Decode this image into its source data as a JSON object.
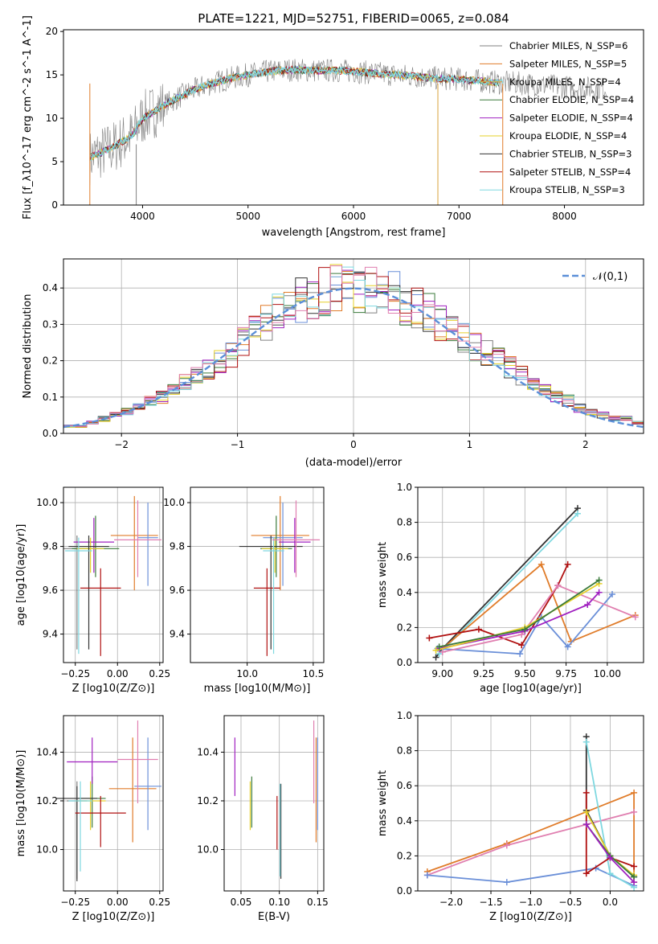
{
  "figure_title": "PLATE=1221, MJD=52751, FIBERID=0065, z=0.084",
  "colors": [
    "#808080",
    "#e07c2a",
    "#d9a13a",
    "#3a7a3a",
    "#a020c0",
    "#e6d02a",
    "#333333",
    "#b01010",
    "#7fd8e0"
  ],
  "chart_data": [
    {
      "id": "spectrum",
      "type": "line",
      "xlabel": "wavelength [Angstrom, rest frame]",
      "ylabel": "Flux [f_λ10^-17 erg cm^-2 s^-1 A^-1]",
      "xlim": [
        3250,
        8750
      ],
      "ylim": [
        0,
        20.2
      ],
      "xticks": [
        "4000",
        "5000",
        "6000",
        "7000",
        "8000"
      ],
      "yticks": [
        "0",
        "5",
        "10",
        "15",
        "20"
      ],
      "legend": {
        "placement": "right",
        "entries": [
          {
            "name": "Chabrier MILES, N_SSP=6",
            "color": "#808080"
          },
          {
            "name": "Salpeter MILES, N_SSP=5",
            "color": "#e07c2a"
          },
          {
            "name": "Kroupa MILES, N_SSP=4",
            "color": "#d9a13a"
          },
          {
            "name": "Chabrier ELODIE, N_SSP=4",
            "color": "#3a7a3a"
          },
          {
            "name": "Salpeter ELODIE, N_SSP=4",
            "color": "#a020c0"
          },
          {
            "name": "Kroupa ELODIE, N_SSP=4",
            "color": "#e6d02a"
          },
          {
            "name": "Chabrier STELIB, N_SSP=3",
            "color": "#333333"
          },
          {
            "name": "Salpeter STELIB, N_SSP=4",
            "color": "#b01010"
          },
          {
            "name": "Kroupa STELIB, N_SSP=3",
            "color": "#7fd8e0"
          }
        ]
      },
      "continuum": {
        "x": [
          3500,
          3700,
          3900,
          4000,
          4200,
          4400,
          4600,
          4800,
          5000,
          5200,
          5400,
          5600,
          5800,
          6000,
          6200,
          6400,
          6600,
          6800,
          7000,
          7200,
          7400,
          7600,
          7800,
          8000,
          8200,
          8400
        ],
        "y": [
          5.5,
          6.5,
          8.0,
          10.0,
          11.5,
          12.8,
          13.8,
          14.5,
          15.0,
          15.4,
          15.6,
          15.5,
          15.5,
          15.4,
          15.2,
          15.0,
          14.8,
          14.6,
          14.5,
          14.3,
          14.1,
          14.0,
          13.8,
          13.6,
          13.5,
          13.4
        ]
      }
    },
    {
      "id": "residual-hist",
      "type": "line",
      "xlabel": "(data-model)/error",
      "ylabel": "Normed distribution",
      "xlim": [
        -2.5,
        2.5
      ],
      "ylim": [
        0,
        0.48
      ],
      "xticks": [
        "−2",
        "−1",
        "0",
        "1",
        "2"
      ],
      "yticks": [
        "0.0",
        "0.1",
        "0.2",
        "0.3",
        "0.4"
      ],
      "legend_label": "𝒩(0,1)",
      "bin_edges": [
        -2.5,
        -2.4,
        -2.3,
        -2.2,
        -2.1,
        -2.0,
        -1.9,
        -1.8,
        -1.7,
        -1.6,
        -1.5,
        -1.4,
        -1.3,
        -1.2,
        -1.1,
        -1.0,
        -0.9,
        -0.8,
        -0.7,
        -0.6,
        -0.5,
        -0.4,
        -0.3,
        -0.2,
        -0.1,
        0.0,
        0.1,
        0.2,
        0.3,
        0.4,
        0.5,
        0.6,
        0.7,
        0.8,
        0.9,
        1.0,
        1.1,
        1.2,
        1.3,
        1.4,
        1.5,
        1.6,
        1.7,
        1.8,
        1.9,
        2.0,
        2.1,
        2.2,
        2.3,
        2.4,
        2.5
      ],
      "base": [
        0.02,
        0.02,
        0.03,
        0.04,
        0.05,
        0.06,
        0.07,
        0.09,
        0.1,
        0.12,
        0.14,
        0.16,
        0.18,
        0.2,
        0.22,
        0.25,
        0.28,
        0.3,
        0.33,
        0.35,
        0.37,
        0.38,
        0.39,
        0.4,
        0.4,
        0.4,
        0.4,
        0.39,
        0.38,
        0.36,
        0.35,
        0.33,
        0.3,
        0.28,
        0.26,
        0.24,
        0.22,
        0.2,
        0.18,
        0.16,
        0.14,
        0.12,
        0.1,
        0.09,
        0.07,
        0.06,
        0.05,
        0.04,
        0.04,
        0.03
      ],
      "gaussian": {
        "mu": 0,
        "sigma": 1
      }
    },
    {
      "id": "age-vs-z",
      "type": "scatter",
      "xlabel": "Z [log10(Z/Z⊙)]",
      "ylabel": "age  [log10(age/yr)]",
      "xlim": [
        -0.32,
        0.27
      ],
      "ylim": [
        9.27,
        10.07
      ],
      "xticks": [
        {
          "v": -0.25,
          "t": "−0.25"
        },
        {
          "v": 0,
          "t": "0.00"
        },
        {
          "v": 0.25,
          "t": "0.25"
        }
      ],
      "yticks": [
        {
          "v": 9.4,
          "t": "9.4"
        },
        {
          "v": 9.6,
          "t": "9.6"
        },
        {
          "v": 9.8,
          "t": "9.8"
        },
        {
          "v": 10.0,
          "t": "10.0"
        }
      ],
      "points": [
        {
          "x": -0.24,
          "y": 9.79,
          "xerr": 0.08,
          "ylo": 9.33,
          "yhi": 9.85,
          "c": "#808080"
        },
        {
          "x": 0.1,
          "y": 9.85,
          "xerr": 0.14,
          "ylo": 9.6,
          "yhi": 10.03,
          "c": "#e07c2a"
        },
        {
          "x": 0.18,
          "y": 9.84,
          "xerr": 0.06,
          "ylo": 9.62,
          "yhi": 10.0,
          "c": "#6a8fd8"
        },
        {
          "x": -0.13,
          "y": 9.79,
          "xerr": 0.14,
          "ylo": 9.66,
          "yhi": 9.94,
          "c": "#3a7a3a"
        },
        {
          "x": -0.14,
          "y": 9.82,
          "xerr": 0.12,
          "ylo": 9.68,
          "yhi": 9.93,
          "c": "#a020c0"
        },
        {
          "x": -0.16,
          "y": 9.79,
          "xerr": 0.08,
          "ylo": 9.68,
          "yhi": 9.84,
          "c": "#e6d02a"
        },
        {
          "x": -0.17,
          "y": 9.8,
          "xerr": 0.12,
          "ylo": 9.33,
          "yhi": 9.85,
          "c": "#333333"
        },
        {
          "x": -0.1,
          "y": 9.61,
          "xerr": 0.12,
          "ylo": 9.3,
          "yhi": 9.7,
          "c": "#b01010"
        },
        {
          "x": -0.23,
          "y": 9.78,
          "xerr": 0.08,
          "ylo": 9.31,
          "yhi": 9.84,
          "c": "#7fd8e0"
        },
        {
          "x": 0.12,
          "y": 9.83,
          "xerr": 0.14,
          "ylo": 9.66,
          "yhi": 10.01,
          "c": "#e07fb0"
        }
      ]
    },
    {
      "id": "age-vs-mass",
      "type": "scatter",
      "xlabel": "mass [log10(M/M⊙)]",
      "ylabel": "",
      "xlim": [
        9.57,
        10.58
      ],
      "ylim": [
        9.27,
        10.07
      ],
      "xticks": [
        {
          "v": 10.0,
          "t": "10.0"
        },
        {
          "v": 10.5,
          "t": "10.5"
        }
      ],
      "yticks": [
        {
          "v": 9.4,
          "t": "9.4"
        },
        {
          "v": 9.6,
          "t": "9.6"
        },
        {
          "v": 9.8,
          "t": "9.8"
        },
        {
          "v": 10.0,
          "t": "10.0"
        }
      ],
      "points": [
        {
          "x": 10.25,
          "y": 9.85,
          "xerr": 0.22,
          "ylo": 9.6,
          "yhi": 10.03,
          "c": "#e07c2a"
        },
        {
          "x": 10.27,
          "y": 9.84,
          "xerr": 0.15,
          "ylo": 9.62,
          "yhi": 10.0,
          "c": "#6a8fd8"
        },
        {
          "x": 10.22,
          "y": 9.79,
          "xerr": 0.12,
          "ylo": 9.66,
          "yhi": 9.94,
          "c": "#3a7a3a"
        },
        {
          "x": 10.36,
          "y": 9.82,
          "xerr": 0.12,
          "ylo": 9.68,
          "yhi": 9.93,
          "c": "#a020c0"
        },
        {
          "x": 10.21,
          "y": 9.79,
          "xerr": 0.1,
          "ylo": 9.68,
          "yhi": 9.84,
          "c": "#e6d02a"
        },
        {
          "x": 10.18,
          "y": 9.8,
          "xerr": 0.24,
          "ylo": 9.33,
          "yhi": 9.85,
          "c": "#333333"
        },
        {
          "x": 10.15,
          "y": 9.61,
          "xerr": 0.1,
          "ylo": 9.3,
          "yhi": 9.7,
          "c": "#b01010"
        },
        {
          "x": 10.2,
          "y": 9.78,
          "xerr": 0.08,
          "ylo": 9.31,
          "yhi": 9.84,
          "c": "#7fd8e0"
        },
        {
          "x": 10.37,
          "y": 9.83,
          "xerr": 0.18,
          "ylo": 9.66,
          "yhi": 10.01,
          "c": "#e07fb0"
        }
      ]
    },
    {
      "id": "mass-vs-z",
      "type": "scatter",
      "xlabel": "Z [log10(Z/Z⊙)]",
      "ylabel": "mass [log10(M/M⊙)]",
      "xlim": [
        -0.32,
        0.27
      ],
      "ylim": [
        9.83,
        10.55
      ],
      "xticks": [
        {
          "v": -0.25,
          "t": "−0.25"
        },
        {
          "v": 0,
          "t": "0.00"
        },
        {
          "v": 0.25,
          "t": "0.25"
        }
      ],
      "yticks": [
        {
          "v": 10.0,
          "t": "10.0"
        },
        {
          "v": 10.2,
          "t": "10.2"
        },
        {
          "v": 10.4,
          "t": "10.4"
        }
      ],
      "points": [
        {
          "x": -0.24,
          "y": 10.2,
          "xerr": 0.06,
          "ylo": 9.88,
          "yhi": 10.28,
          "c": "#808080"
        },
        {
          "x": 0.09,
          "y": 10.25,
          "xerr": 0.14,
          "ylo": 10.03,
          "yhi": 10.46,
          "c": "#e07c2a"
        },
        {
          "x": 0.18,
          "y": 10.26,
          "xerr": 0.08,
          "ylo": 10.08,
          "yhi": 10.46,
          "c": "#6a8fd8"
        },
        {
          "x": -0.15,
          "y": 10.21,
          "xerr": 0.08,
          "ylo": 10.09,
          "yhi": 10.3,
          "c": "#3a7a3a"
        },
        {
          "x": -0.15,
          "y": 10.36,
          "xerr": 0.15,
          "ylo": 10.27,
          "yhi": 10.46,
          "c": "#a020c0"
        },
        {
          "x": -0.16,
          "y": 10.2,
          "xerr": 0.09,
          "ylo": 10.08,
          "yhi": 10.28,
          "c": "#e6d02a"
        },
        {
          "x": -0.24,
          "y": 10.21,
          "xerr": 0.12,
          "ylo": 9.87,
          "yhi": 10.26,
          "c": "#333333"
        },
        {
          "x": -0.1,
          "y": 10.15,
          "xerr": 0.15,
          "ylo": 10.01,
          "yhi": 10.22,
          "c": "#b01010"
        },
        {
          "x": -0.22,
          "y": 10.2,
          "xerr": 0.07,
          "ylo": 9.91,
          "yhi": 10.28,
          "c": "#7fd8e0"
        },
        {
          "x": 0.12,
          "y": 10.37,
          "xerr": 0.12,
          "ylo": 10.19,
          "yhi": 10.53,
          "c": "#e07fb0"
        }
      ]
    },
    {
      "id": "mass-vs-ebv",
      "type": "scatter",
      "xlabel": "E(B-V)",
      "ylabel": "",
      "xlim": [
        0.028,
        0.158
      ],
      "ylim": [
        9.83,
        10.55
      ],
      "xticks": [
        {
          "v": 0.05,
          "t": "0.05"
        },
        {
          "v": 0.1,
          "t": "0.10"
        },
        {
          "v": 0.15,
          "t": "0.15"
        }
      ],
      "yticks": [
        {
          "v": 10.0,
          "t": "10.0"
        },
        {
          "v": 10.2,
          "t": "10.2"
        },
        {
          "v": 10.4,
          "t": "10.4"
        }
      ],
      "points": [
        {
          "x": 0.148,
          "y": 10.25,
          "xerr": 0,
          "ylo": 10.03,
          "yhi": 10.46,
          "c": "#e07c2a"
        },
        {
          "x": 0.15,
          "y": 10.26,
          "xerr": 0,
          "ylo": 10.08,
          "yhi": 10.46,
          "c": "#6a8fd8"
        },
        {
          "x": 0.064,
          "y": 10.21,
          "xerr": 0,
          "ylo": 10.09,
          "yhi": 10.3,
          "c": "#3a7a3a"
        },
        {
          "x": 0.042,
          "y": 10.36,
          "xerr": 0,
          "ylo": 10.22,
          "yhi": 10.46,
          "c": "#a020c0"
        },
        {
          "x": 0.062,
          "y": 10.2,
          "xerr": 0,
          "ylo": 10.08,
          "yhi": 10.28,
          "c": "#e6d02a"
        },
        {
          "x": 0.102,
          "y": 10.21,
          "xerr": 0,
          "ylo": 9.88,
          "yhi": 10.27,
          "c": "#333333"
        },
        {
          "x": 0.097,
          "y": 10.15,
          "xerr": 0,
          "ylo": 10.0,
          "yhi": 10.22,
          "c": "#b01010"
        },
        {
          "x": 0.101,
          "y": 10.2,
          "xerr": 0,
          "ylo": 9.89,
          "yhi": 10.27,
          "c": "#7fd8e0"
        },
        {
          "x": 0.145,
          "y": 10.37,
          "xerr": 0,
          "ylo": 10.19,
          "yhi": 10.53,
          "c": "#e07fb0"
        }
      ]
    },
    {
      "id": "weight-vs-age",
      "type": "line",
      "xlabel": "age  [log10(age/yr)]",
      "ylabel": "mass weight",
      "xlim": [
        8.85,
        10.22
      ],
      "ylim": [
        0,
        1.0
      ],
      "xticks": [
        {
          "v": 9.0,
          "t": "9.00"
        },
        {
          "v": 9.25,
          "t": "9.25"
        },
        {
          "v": 9.5,
          "t": "9.50"
        },
        {
          "v": 9.75,
          "t": "9.75"
        },
        {
          "v": 10.0,
          "t": "10.00"
        }
      ],
      "yticks": [
        {
          "v": 0,
          "t": "0.0"
        },
        {
          "v": 0.2,
          "t": "0.2"
        },
        {
          "v": 0.4,
          "t": "0.4"
        },
        {
          "v": 0.6,
          "t": "0.6"
        },
        {
          "v": 0.8,
          "t": "0.8"
        },
        {
          "v": 1.0,
          "t": "1.0"
        }
      ],
      "series": [
        {
          "color": "#333333",
          "x": [
            8.96,
            9.0,
            9.82
          ],
          "y": [
            0.03,
            0.08,
            0.88
          ]
        },
        {
          "color": "#7fd8e0",
          "x": [
            8.98,
            9.82
          ],
          "y": [
            0.05,
            0.85
          ]
        },
        {
          "color": "#e07c2a",
          "x": [
            9.0,
            9.6,
            9.78,
            10.17
          ],
          "y": [
            0.08,
            0.56,
            0.12,
            0.27
          ]
        },
        {
          "color": "#b01010",
          "x": [
            8.92,
            9.22,
            9.48,
            9.7,
            9.76
          ],
          "y": [
            0.14,
            0.19,
            0.1,
            0.44,
            0.56
          ]
        },
        {
          "color": "#6a8fd8",
          "x": [
            8.97,
            9.47,
            9.6,
            9.76,
            10.03
          ],
          "y": [
            0.08,
            0.05,
            0.26,
            0.09,
            0.39
          ]
        },
        {
          "color": "#e07fb0",
          "x": [
            9.0,
            9.48,
            9.7,
            10.17
          ],
          "y": [
            0.06,
            0.16,
            0.44,
            0.26
          ]
        },
        {
          "color": "#a020c0",
          "x": [
            8.98,
            9.5,
            9.88,
            9.95
          ],
          "y": [
            0.08,
            0.18,
            0.33,
            0.4
          ]
        },
        {
          "color": "#e6d02a",
          "x": [
            8.96,
            9.5,
            9.95
          ],
          "y": [
            0.07,
            0.2,
            0.45
          ]
        },
        {
          "color": "#3a7a3a",
          "x": [
            8.98,
            9.5,
            9.95
          ],
          "y": [
            0.09,
            0.19,
            0.47
          ]
        }
      ]
    },
    {
      "id": "weight-vs-z",
      "type": "line",
      "xlabel": "Z [log10(Z/Z⊙)]",
      "ylabel": "mass weight",
      "xlim": [
        -2.42,
        0.42
      ],
      "ylim": [
        0,
        1.0
      ],
      "xticks": [
        {
          "v": -2.0,
          "t": "−2.0"
        },
        {
          "v": -1.5,
          "t": "−1.5"
        },
        {
          "v": -1.0,
          "t": "−1.0"
        },
        {
          "v": -0.5,
          "t": "−0.5"
        },
        {
          "v": 0,
          "t": "0.0"
        }
      ],
      "yticks": [
        {
          "v": 0,
          "t": "0.0"
        },
        {
          "v": 0.2,
          "t": "0.2"
        },
        {
          "v": 0.4,
          "t": "0.4"
        },
        {
          "v": 0.6,
          "t": "0.6"
        },
        {
          "v": 0.8,
          "t": "0.8"
        },
        {
          "v": 1.0,
          "t": "1.0"
        }
      ],
      "series": [
        {
          "color": "#e07c2a",
          "x": [
            -2.3,
            -1.3,
            0.3,
            0.3
          ],
          "y": [
            0.11,
            0.27,
            0.56,
            0.05
          ]
        },
        {
          "color": "#e07fb0",
          "x": [
            -2.3,
            -1.3,
            0.3
          ],
          "y": [
            0.09,
            0.26,
            0.45
          ]
        },
        {
          "color": "#6a8fd8",
          "x": [
            -2.3,
            -1.3,
            -0.18,
            0.3
          ],
          "y": [
            0.09,
            0.05,
            0.13,
            0.03
          ]
        },
        {
          "color": "#333333",
          "x": [
            -0.3,
            -0.3,
            0.0,
            0.3
          ],
          "y": [
            0.88,
            0.46,
            0.2,
            0.08
          ]
        },
        {
          "color": "#7fd8e0",
          "x": [
            -0.3,
            0.0,
            0.3
          ],
          "y": [
            0.85,
            0.1,
            0.02
          ]
        },
        {
          "color": "#b01010",
          "x": [
            -0.3,
            -0.3,
            0.0,
            0.3
          ],
          "y": [
            0.56,
            0.1,
            0.19,
            0.14
          ]
        },
        {
          "color": "#e6d02a",
          "x": [
            -0.3,
            0.0,
            0.3
          ],
          "y": [
            0.45,
            0.2,
            0.09
          ]
        },
        {
          "color": "#3a7a3a",
          "x": [
            -0.3,
            0.0,
            0.3
          ],
          "y": [
            0.38,
            0.2,
            0.08
          ]
        },
        {
          "color": "#a020c0",
          "x": [
            -0.3,
            0.0,
            0.3
          ],
          "y": [
            0.38,
            0.19,
            0.05
          ]
        }
      ]
    }
  ]
}
